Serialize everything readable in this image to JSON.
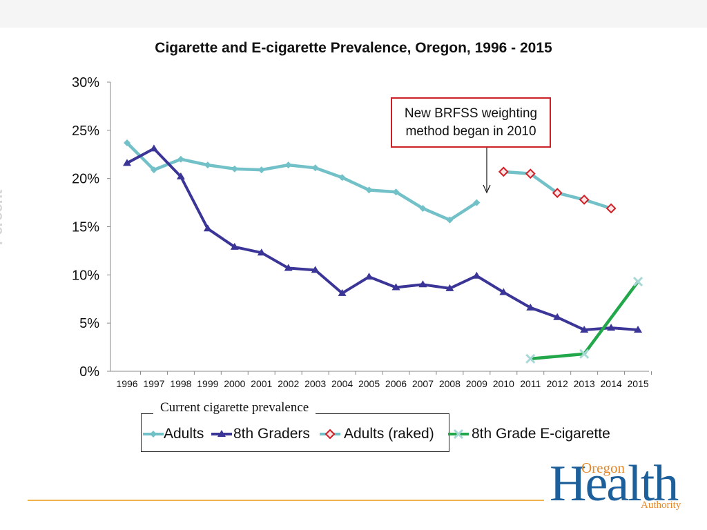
{
  "chart_data": {
    "type": "line",
    "title": "Cigarette and E-cigarette Prevalence, Oregon, 1996 - 2015",
    "ylabel": "Percent",
    "xlabel": "",
    "ylim": [
      0,
      30
    ],
    "y_ticks": [
      0,
      5,
      10,
      15,
      20,
      25,
      30
    ],
    "y_tick_labels": [
      "0%",
      "5%",
      "10%",
      "15%",
      "20%",
      "25%",
      "30%"
    ],
    "categories": [
      "1996",
      "1997",
      "1998",
      "1999",
      "2000",
      "2001",
      "2002",
      "2003",
      "2004",
      "2005",
      "2006",
      "2007",
      "2008",
      "2009",
      "2010",
      "2011",
      "2012",
      "2013",
      "2014",
      "2015"
    ],
    "series": [
      {
        "name": "Adults",
        "color": "#72c1c8",
        "marker": "diamond",
        "values": [
          23.7,
          20.9,
          22.0,
          21.4,
          21.0,
          20.9,
          21.4,
          21.1,
          20.1,
          18.8,
          18.6,
          16.9,
          15.7,
          17.5,
          null,
          null,
          null,
          null,
          null,
          null
        ]
      },
      {
        "name": "8th Graders",
        "color": "#3a3596",
        "marker": "triangle",
        "values": [
          21.6,
          23.1,
          20.2,
          14.8,
          12.9,
          12.3,
          10.7,
          10.5,
          8.1,
          9.8,
          8.7,
          9.0,
          8.6,
          9.9,
          8.2,
          6.6,
          5.6,
          4.3,
          4.5,
          4.3
        ]
      },
      {
        "name": "Adults (raked)",
        "color": "#72c1c8",
        "marker": "diamond-red",
        "values": [
          null,
          null,
          null,
          null,
          null,
          null,
          null,
          null,
          null,
          null,
          null,
          null,
          null,
          null,
          20.7,
          20.5,
          18.5,
          17.8,
          16.9,
          null
        ]
      },
      {
        "name": "8th Grade E-cigarette",
        "color": "#22a84a",
        "marker": "x",
        "values": [
          null,
          null,
          null,
          null,
          null,
          null,
          null,
          null,
          null,
          null,
          null,
          null,
          null,
          null,
          null,
          1.3,
          null,
          1.8,
          null,
          9.3
        ]
      }
    ],
    "annotation": "New BRFSS weighting method began in 2010",
    "legend_title": "Current cigarette prevalence",
    "legend_position": "bottom"
  },
  "colors": {
    "accent_rule": "#f0b24a",
    "annotation_border": "#cc2027",
    "logo_blue": "#1c5f9a",
    "logo_orange": "#e4892a"
  },
  "logo": {
    "line1": "Oregon",
    "line2": "Health",
    "line3": "Authority"
  }
}
